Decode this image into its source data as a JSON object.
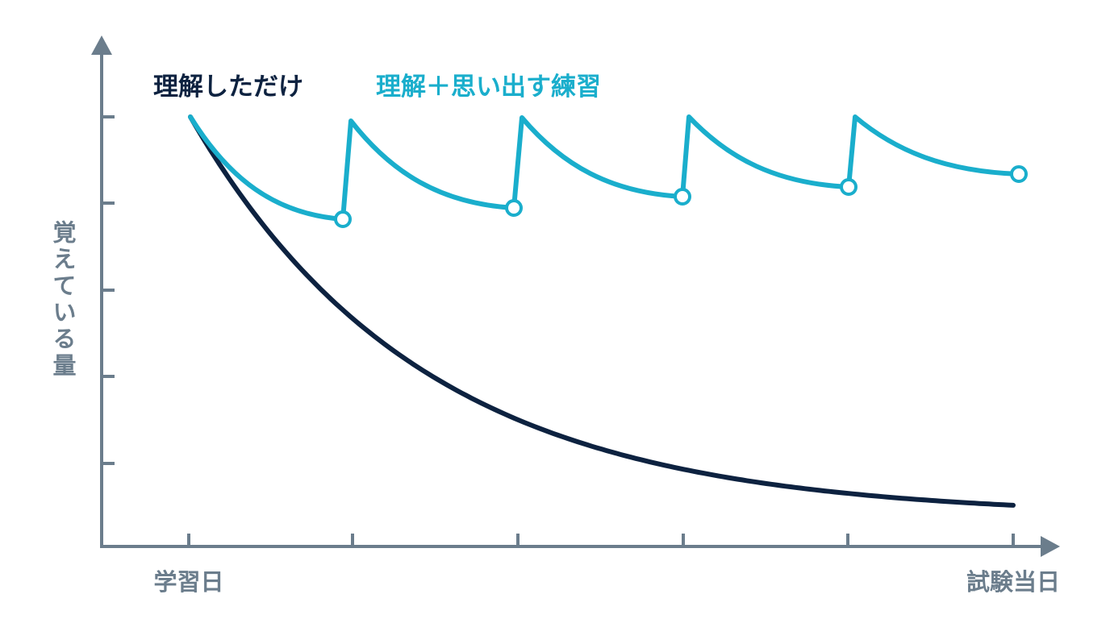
{
  "y_axis_label": "覚えている量",
  "x_axis": {
    "start_label": "学習日",
    "end_label": "試験当日"
  },
  "legend": {
    "understand_only": "理解しただけ",
    "understand_and_recall": "理解＋思い出す練習"
  }
}
